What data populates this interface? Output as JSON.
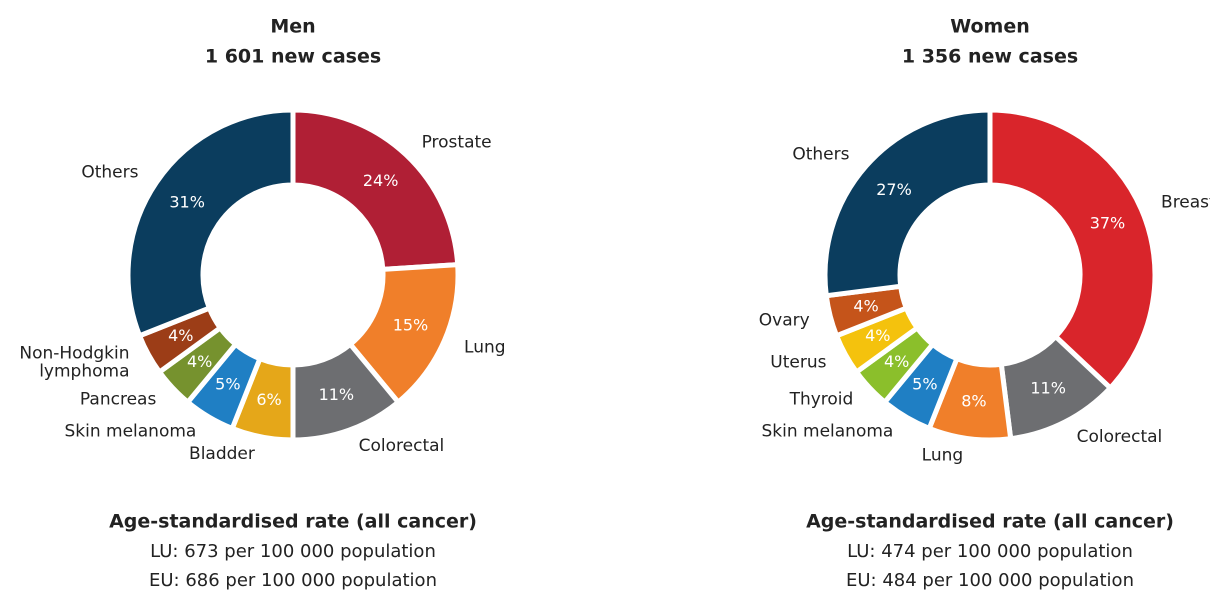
{
  "chart_data": [
    {
      "type": "pie",
      "donut": true,
      "title": "Men",
      "subtitle": "1 601 new cases",
      "categories": [
        "Prostate",
        "Lung",
        "Colorectal",
        "Bladder",
        "Skin melanoma",
        "Pancreas",
        "Non-Hodgkin\nlymphoma",
        "Others"
      ],
      "values": [
        24,
        15,
        11,
        6,
        5,
        4,
        4,
        31
      ],
      "value_labels": [
        "24%",
        "15%",
        "11%",
        "6%",
        "5%",
        "4%",
        "4%",
        "31%"
      ],
      "colors": [
        "#b01f35",
        "#f07f2a",
        "#6d6e71",
        "#e5a719",
        "#1f7fc4",
        "#76922e",
        "#9c3d17",
        "#0b3d5e"
      ],
      "footer_title": "Age-standardised rate (all cancer)",
      "footer_lines": [
        "LU: 673 per 100 000 population",
        "EU: 686 per 100 000 population"
      ]
    },
    {
      "type": "pie",
      "donut": true,
      "title": "Women",
      "subtitle": "1 356 new cases",
      "categories": [
        "Breast",
        "Colorectal",
        "Lung",
        "Skin melanoma",
        "Thyroid",
        "Uterus",
        "Ovary",
        "Others"
      ],
      "values": [
        37,
        11,
        8,
        5,
        4,
        4,
        4,
        27
      ],
      "value_labels": [
        "37%",
        "11%",
        "8%",
        "5%",
        "4%",
        "4%",
        "4%",
        "27%"
      ],
      "colors": [
        "#d9252b",
        "#6d6e71",
        "#f07f2a",
        "#1f7fc4",
        "#8bbf2b",
        "#f4c20d",
        "#c5541a",
        "#0b3d5e"
      ],
      "footer_title": "Age-standardised rate (all cancer)",
      "footer_lines": [
        "LU: 474 per 100 000 population",
        "EU: 484 per 100 000 population"
      ]
    }
  ]
}
